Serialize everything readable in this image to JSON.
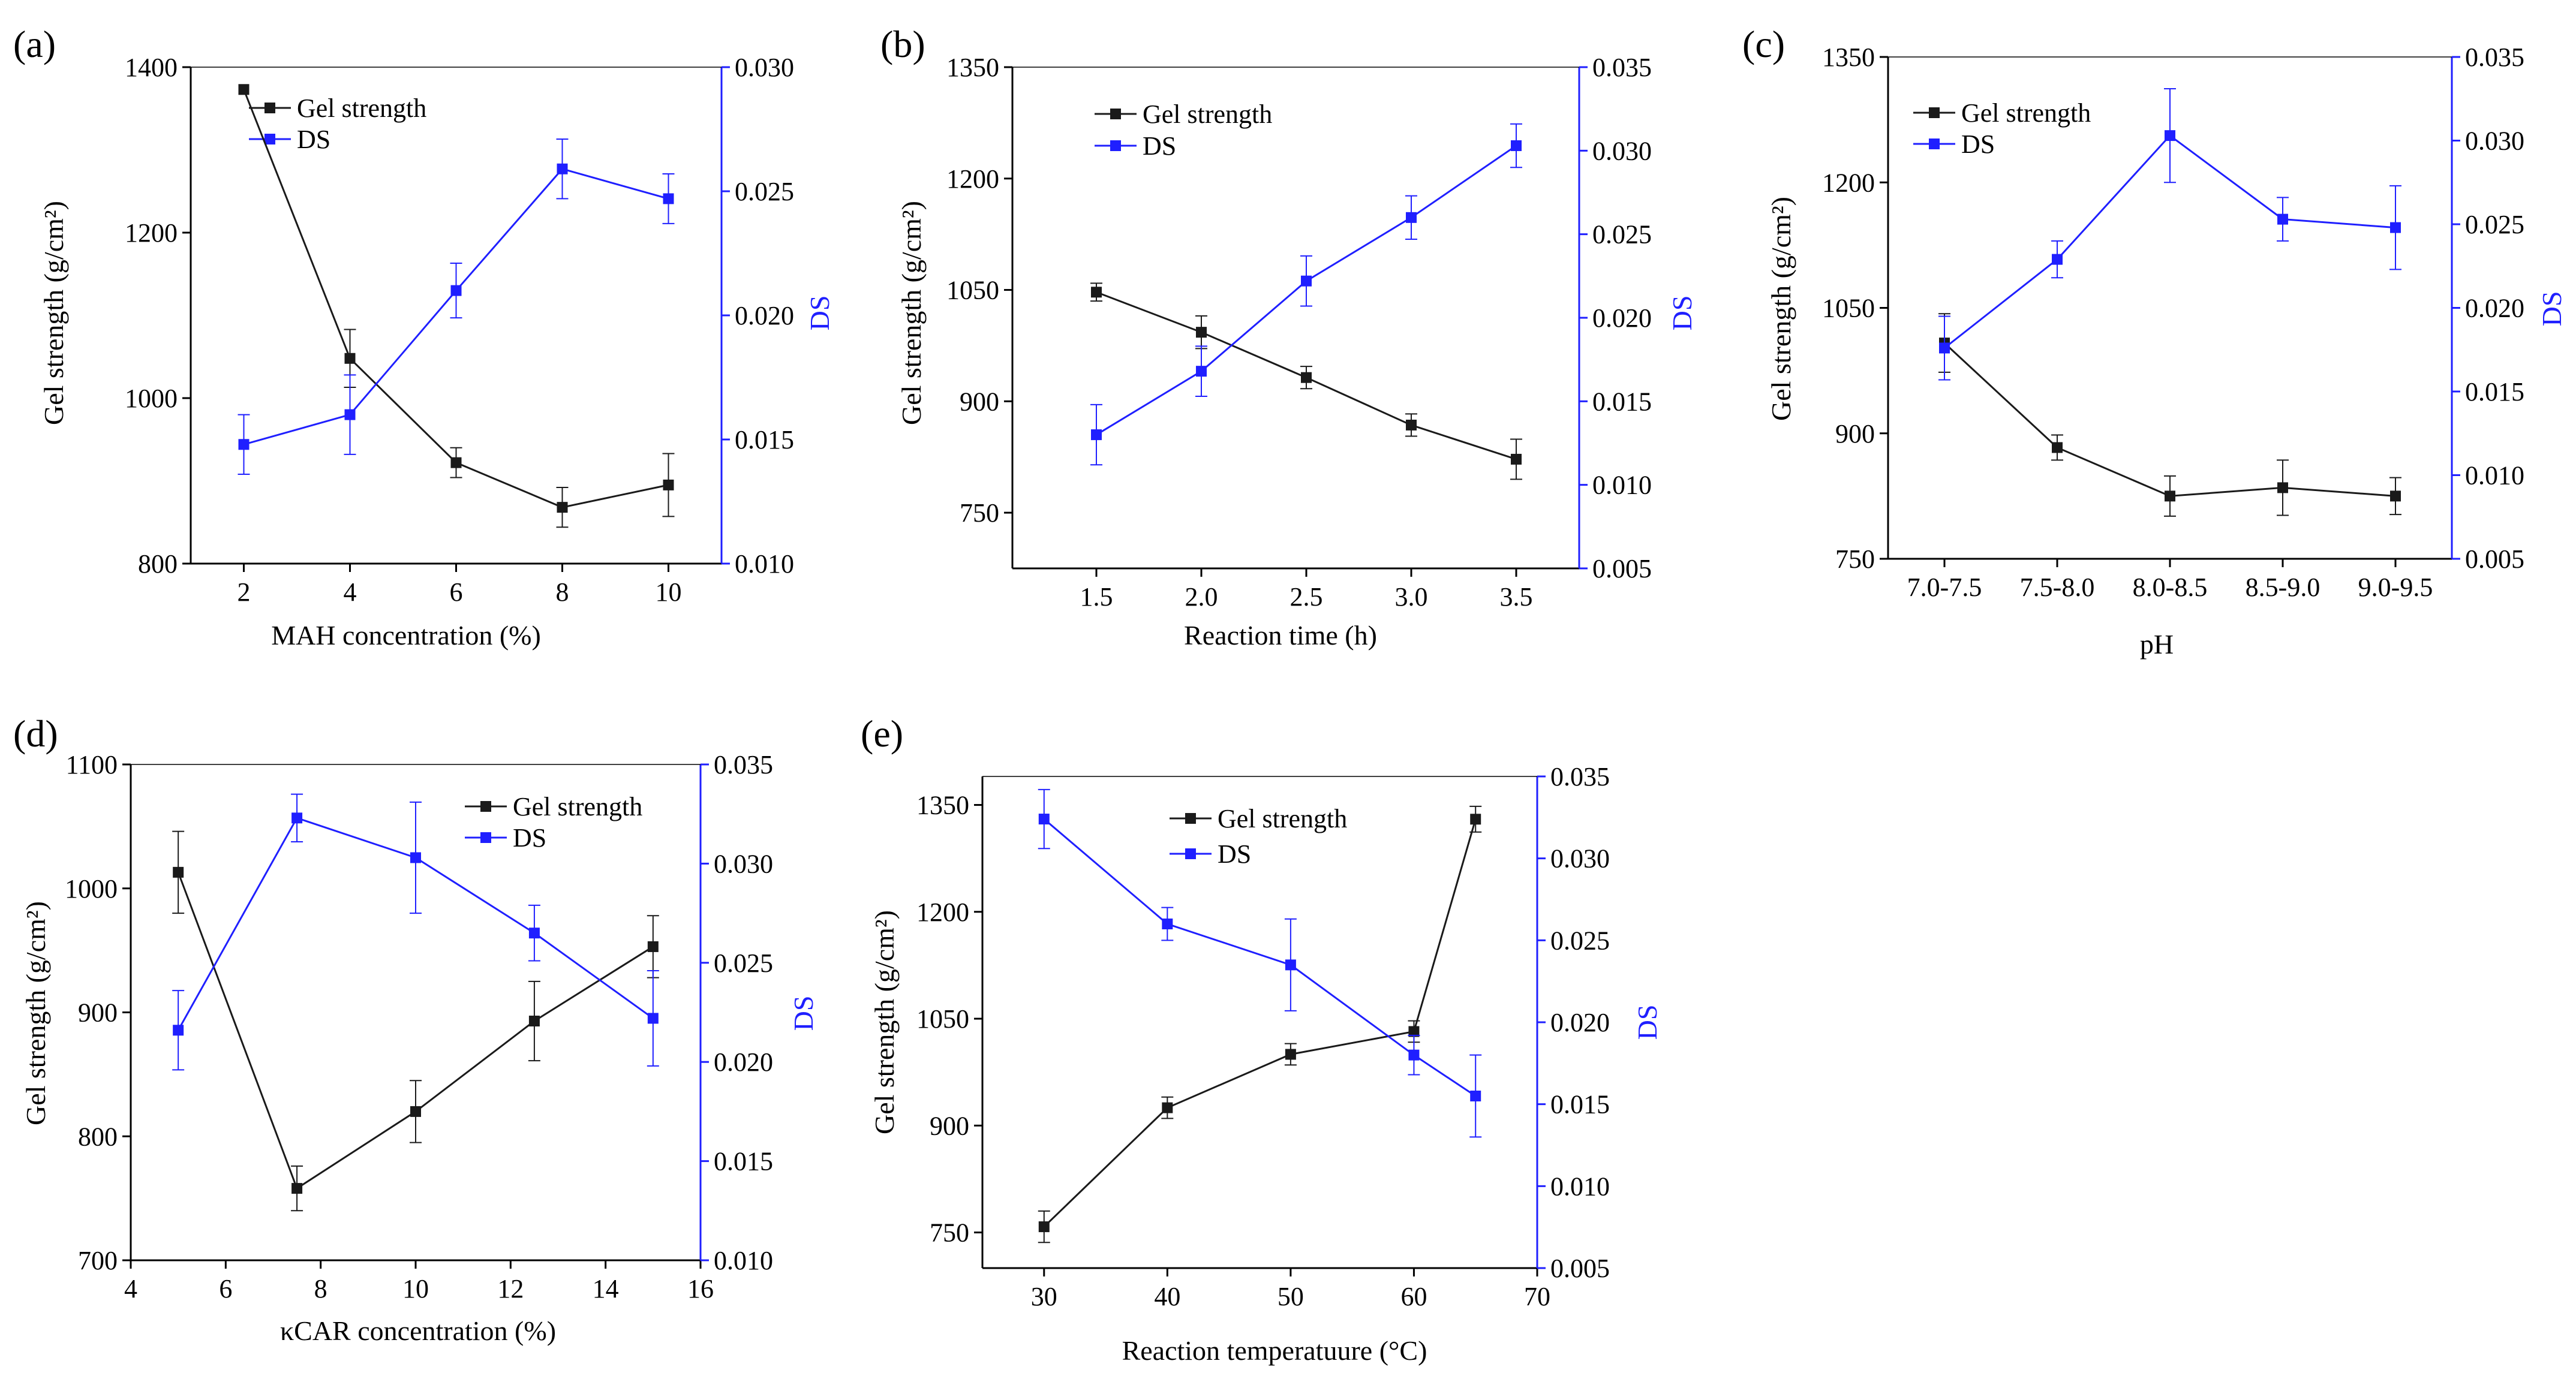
{
  "colors": {
    "gel": "#1a1a1a",
    "ds": "#1f1fff",
    "axis": "#000000"
  },
  "chart_data": [
    {
      "type": "line",
      "panel_label": "(a)",
      "xlabel": "MAH concentration (%)",
      "ylabel_left": "Gel strength (g/cm²)",
      "ylabel_right": "DS",
      "x": [
        2,
        4,
        6,
        8,
        10
      ],
      "xlim": [
        1,
        11
      ],
      "xticks": [
        2,
        4,
        6,
        8,
        10
      ],
      "ylim_left": [
        800,
        1400
      ],
      "yticks_left": [
        800,
        1000,
        1200,
        1400
      ],
      "ylim_right": [
        0.01,
        0.03
      ],
      "yticks_right": [
        0.01,
        0.015,
        0.02,
        0.025,
        0.03
      ],
      "legend_position": "top-left",
      "series": [
        {
          "name": "Gel strength",
          "axis": "left",
          "values": [
            1373,
            1048,
            922,
            868,
            895
          ],
          "errors": [
            0,
            35,
            18,
            24,
            38
          ]
        },
        {
          "name": "DS",
          "axis": "right",
          "values": [
            0.0148,
            0.016,
            0.021,
            0.0259,
            0.0247
          ],
          "errors": [
            0.0012,
            0.0016,
            0.0011,
            0.0012,
            0.001
          ]
        }
      ]
    },
    {
      "type": "line",
      "panel_label": "(b)",
      "xlabel": "Reaction time (h)",
      "ylabel_left": "Gel strength (g/cm²)",
      "ylabel_right": "DS",
      "x": [
        1.5,
        2.0,
        2.5,
        3.0,
        3.5
      ],
      "xlim": [
        1.1,
        3.8
      ],
      "xticks": [
        1.5,
        2.0,
        2.5,
        3.0,
        3.5
      ],
      "ylim_left": [
        675,
        1350
      ],
      "yticks_left": [
        750,
        900,
        1050,
        1200,
        1350
      ],
      "ylim_right": [
        0.005,
        0.035
      ],
      "yticks_right": [
        0.005,
        0.01,
        0.015,
        0.02,
        0.025,
        0.03,
        0.035
      ],
      "legend_position": "top-center",
      "series": [
        {
          "name": "Gel strength",
          "axis": "left",
          "values": [
            1047,
            993,
            932,
            868,
            822
          ],
          "errors": [
            12,
            22,
            15,
            15,
            27
          ]
        },
        {
          "name": "DS",
          "axis": "right",
          "values": [
            0.013,
            0.0168,
            0.0222,
            0.026,
            0.0303
          ],
          "errors": [
            0.0018,
            0.0015,
            0.0015,
            0.0013,
            0.0013
          ]
        }
      ]
    },
    {
      "type": "line",
      "panel_label": "(c)",
      "xlabel": "pH",
      "ylabel_left": "Gel strength (g/cm²)",
      "ylabel_right": "DS",
      "categories": [
        "7.0-7.5",
        "7.5-8.0",
        "8.0-8.5",
        "8.5-9.0",
        "9.0-9.5"
      ],
      "ylim_left": [
        750,
        1350
      ],
      "yticks_left": [
        750,
        900,
        1050,
        1200,
        1350
      ],
      "ylim_right": [
        0.005,
        0.035
      ],
      "yticks_right": [
        0.005,
        0.01,
        0.015,
        0.02,
        0.025,
        0.03,
        0.035
      ],
      "legend_position": "top-center",
      "series": [
        {
          "name": "Gel strength",
          "axis": "left",
          "values": [
            1008,
            883,
            825,
            835,
            825
          ],
          "errors": [
            35,
            15,
            24,
            33,
            22
          ]
        },
        {
          "name": "DS",
          "axis": "right",
          "values": [
            0.0176,
            0.0229,
            0.0303,
            0.0253,
            0.0248
          ],
          "errors": [
            0.0019,
            0.0011,
            0.0028,
            0.0013,
            0.0025
          ]
        }
      ]
    },
    {
      "type": "line",
      "panel_label": "(d)",
      "xlabel": "κCAR concentration (%)",
      "ylabel_left": "Gel strength (g/cm²)",
      "ylabel_right": "DS",
      "x": [
        5,
        7.5,
        10,
        12.5,
        15
      ],
      "xlim": [
        4,
        16
      ],
      "xticks": [
        4,
        6,
        8,
        10,
        12,
        14,
        16
      ],
      "ylim_left": [
        700,
        1100
      ],
      "yticks_left": [
        700,
        800,
        900,
        1000,
        1100
      ],
      "ylim_right": [
        0.01,
        0.035
      ],
      "yticks_right": [
        0.01,
        0.015,
        0.02,
        0.025,
        0.03,
        0.035
      ],
      "legend_position": "top-right",
      "series": [
        {
          "name": "Gel strength",
          "axis": "left",
          "values": [
            1013,
            758,
            820,
            893,
            953
          ],
          "errors": [
            33,
            18,
            25,
            32,
            25
          ]
        },
        {
          "name": "DS",
          "axis": "right",
          "values": [
            0.0216,
            0.0323,
            0.0303,
            0.0265,
            0.0222
          ],
          "errors": [
            0.002,
            0.0012,
            0.0028,
            0.0014,
            0.0024
          ]
        }
      ]
    },
    {
      "type": "line",
      "panel_label": "(e)",
      "xlabel": "Reaction temperatuure (°C)",
      "ylabel_left": "Gel strength (g/cm²)",
      "ylabel_right": "DS",
      "x": [
        30,
        40,
        50,
        60,
        65
      ],
      "xlim": [
        25,
        70
      ],
      "xticks": [
        30,
        40,
        50,
        60,
        70
      ],
      "ylim_left": [
        700,
        1390
      ],
      "yticks_left": [
        750,
        900,
        1050,
        1200,
        1350
      ],
      "ylim_right": [
        0.005,
        0.035
      ],
      "yticks_right": [
        0.005,
        0.01,
        0.015,
        0.02,
        0.025,
        0.03,
        0.035
      ],
      "legend_position": "top-center",
      "series": [
        {
          "name": "Gel strength",
          "axis": "left",
          "values": [
            758,
            925,
            1000,
            1032,
            1330
          ],
          "errors": [
            22,
            15,
            15,
            15,
            18
          ]
        },
        {
          "name": "DS",
          "axis": "right",
          "values": [
            0.0324,
            0.026,
            0.0235,
            0.018,
            0.0155
          ],
          "errors": [
            0.0018,
            0.001,
            0.0028,
            0.0012,
            0.0025
          ]
        }
      ]
    }
  ]
}
